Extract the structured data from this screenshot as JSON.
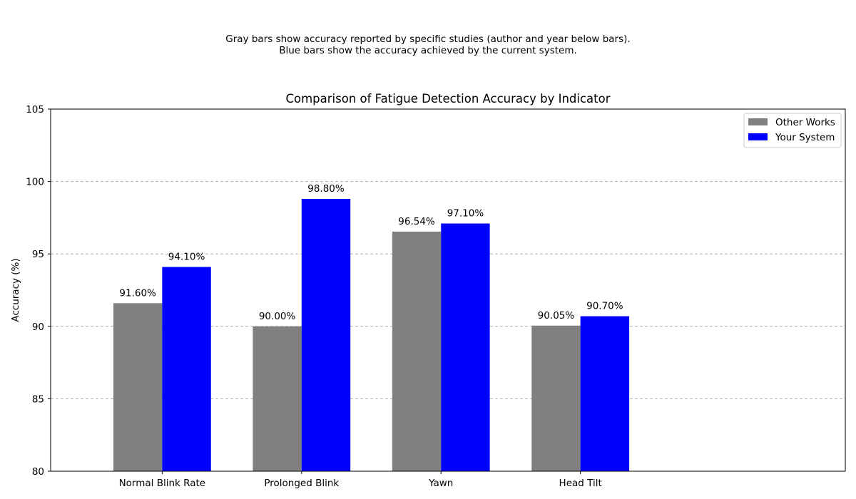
{
  "description_lines": [
    "Gray bars show accuracy reported by specific studies (author and year below bars).",
    "Blue bars show the accuracy achieved by the current system."
  ],
  "chart_data": {
    "type": "bar",
    "title": "Comparison of Fatigue Detection Accuracy by Indicator",
    "xlabel": "",
    "ylabel": "Accuracy (%)",
    "categories": [
      "Normal Blink Rate",
      "Prolonged Blink",
      "Yawn",
      "Head Tilt"
    ],
    "series": [
      {
        "name": "Other Works",
        "color": "#808080",
        "values": [
          91.6,
          90.0,
          96.54,
          90.05
        ],
        "labels": [
          "91.60%",
          "90.00%",
          "96.54%",
          "90.05%"
        ]
      },
      {
        "name": "Your System",
        "color": "#0000ff",
        "values": [
          94.1,
          98.8,
          97.1,
          90.7
        ],
        "labels": [
          "94.10%",
          "98.80%",
          "97.10%",
          "90.70%"
        ]
      }
    ],
    "ylim": [
      80,
      105
    ],
    "yticks": [
      80,
      85,
      90,
      95,
      100,
      105
    ],
    "grid": "y-dashed",
    "legend_position": "top-right"
  }
}
